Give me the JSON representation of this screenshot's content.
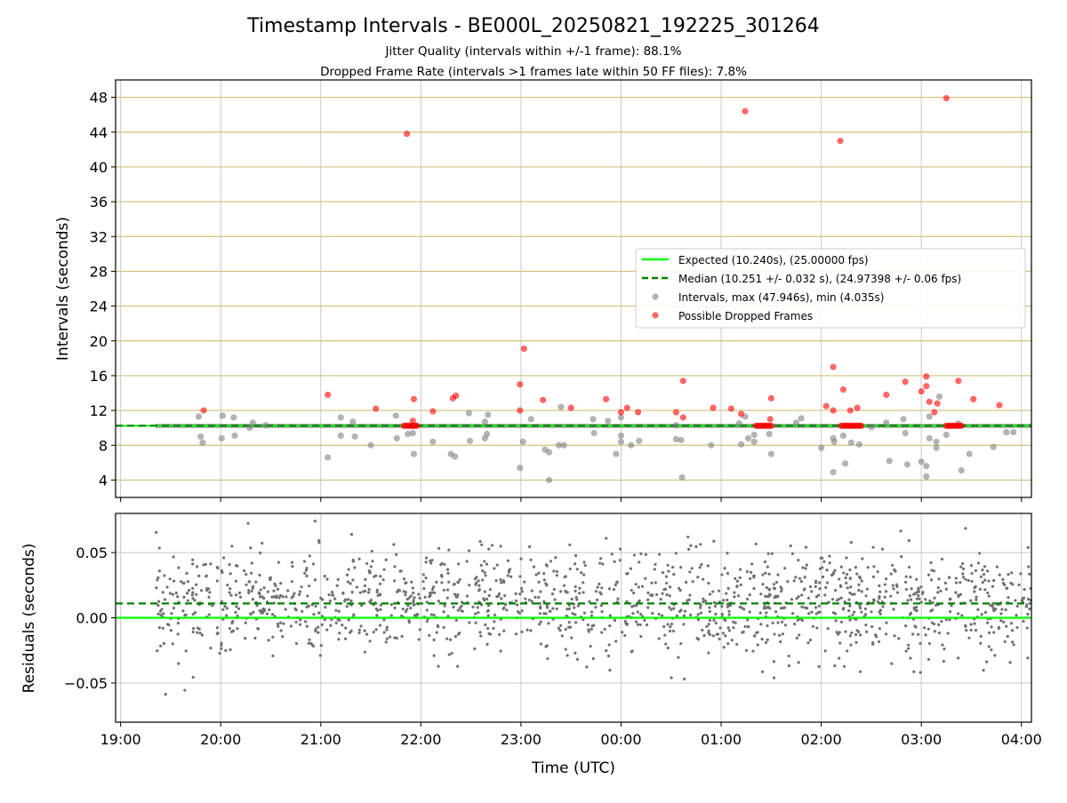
{
  "chart_data": [
    {
      "type": "scatter",
      "title": "Timestamp Intervals - BE000L_20250821_192225_301264",
      "subtitle_lines": [
        "Jitter Quality (intervals within +/-1 frame): 88.1%",
        "Dropped Frame Rate (intervals >1 frames late within 50 FF files): 7.8%"
      ],
      "xlabel": "",
      "ylabel": "Intervals (seconds)",
      "xlim_hours": [
        18.95,
        28.1
      ],
      "ylim": [
        2,
        50
      ],
      "yticks": [
        4,
        8,
        12,
        16,
        20,
        24,
        28,
        32,
        36,
        40,
        44,
        48
      ],
      "grid": true,
      "legend_position": "center-right",
      "legend": [
        "Expected (10.240s), (25.00000 fps)",
        "Median (10.251 +/- 0.032 s), (24.97398 +/- 0.06 fps)",
        "Intervals, max (47.946s), min (4.035s)",
        "Possible Dropped Frames"
      ],
      "expected_value": 10.24,
      "median_value": 10.251,
      "dense_band": {
        "x_start": 19.35,
        "x_end": 28.1,
        "y_min": 10.0,
        "y_max": 10.45
      },
      "intervals_outliers": [
        [
          19.78,
          11.3
        ],
        [
          19.82,
          8.3
        ],
        [
          19.8,
          9.0
        ],
        [
          20.13,
          11.2
        ],
        [
          20.02,
          11.4
        ],
        [
          20.01,
          8.8
        ],
        [
          20.14,
          9.1
        ],
        [
          20.32,
          10.6
        ],
        [
          20.29,
          10.0
        ],
        [
          20.45,
          10.3
        ],
        [
          21.07,
          6.6
        ],
        [
          21.2,
          11.2
        ],
        [
          21.2,
          9.1
        ],
        [
          21.32,
          10.7
        ],
        [
          21.34,
          9.0
        ],
        [
          21.5,
          8.0
        ],
        [
          21.75,
          11.4
        ],
        [
          21.76,
          8.8
        ],
        [
          21.87,
          9.3
        ],
        [
          21.92,
          9.4
        ],
        [
          21.93,
          7.0
        ],
        [
          22.12,
          8.4
        ],
        [
          22.3,
          7.0
        ],
        [
          22.34,
          6.7
        ],
        [
          22.48,
          11.7
        ],
        [
          22.49,
          8.5
        ],
        [
          22.67,
          11.5
        ],
        [
          22.64,
          10.7
        ],
        [
          22.66,
          9.3
        ],
        [
          22.64,
          8.8
        ],
        [
          22.99,
          5.4
        ],
        [
          23.02,
          8.4
        ],
        [
          23.1,
          11.0
        ],
        [
          23.24,
          7.5
        ],
        [
          23.28,
          4.0
        ],
        [
          23.28,
          7.2
        ],
        [
          23.4,
          12.4
        ],
        [
          23.38,
          8.0
        ],
        [
          23.43,
          8.0
        ],
        [
          23.72,
          11.0
        ],
        [
          23.73,
          9.4
        ],
        [
          23.87,
          10.8
        ],
        [
          23.95,
          7.0
        ],
        [
          24.0,
          11.2
        ],
        [
          24.0,
          9.1
        ],
        [
          24.0,
          8.4
        ],
        [
          24.1,
          8.0
        ],
        [
          24.18,
          8.5
        ],
        [
          24.55,
          10.3
        ],
        [
          24.55,
          8.7
        ],
        [
          24.6,
          8.6
        ],
        [
          24.61,
          4.3
        ],
        [
          24.9,
          8.0
        ],
        [
          25.2,
          8.1
        ],
        [
          25.18,
          10.5
        ],
        [
          25.24,
          11.3
        ],
        [
          25.27,
          8.8
        ],
        [
          25.33,
          8.4
        ],
        [
          25.33,
          9.2
        ],
        [
          25.48,
          9.3
        ],
        [
          25.5,
          7.0
        ],
        [
          25.8,
          11.1
        ],
        [
          25.75,
          10.6
        ],
        [
          26.0,
          7.7
        ],
        [
          26.12,
          8.8
        ],
        [
          26.13,
          8.4
        ],
        [
          26.12,
          4.9
        ],
        [
          26.22,
          9.1
        ],
        [
          26.24,
          5.9
        ],
        [
          26.3,
          8.3
        ],
        [
          26.38,
          8.1
        ],
        [
          26.5,
          10.1
        ],
        [
          26.65,
          10.6
        ],
        [
          26.68,
          6.2
        ],
        [
          26.82,
          11.0
        ],
        [
          26.84,
          9.4
        ],
        [
          26.86,
          5.8
        ],
        [
          27.0,
          6.1
        ],
        [
          27.05,
          5.6
        ],
        [
          27.05,
          4.4
        ],
        [
          27.08,
          11.3
        ],
        [
          27.08,
          8.8
        ],
        [
          27.15,
          8.4
        ],
        [
          27.15,
          7.7
        ],
        [
          27.18,
          13.6
        ],
        [
          27.25,
          9.2
        ],
        [
          27.37,
          10.5
        ],
        [
          27.4,
          5.1
        ],
        [
          27.48,
          7.0
        ],
        [
          27.72,
          7.8
        ],
        [
          27.85,
          9.5
        ],
        [
          27.92,
          9.5
        ]
      ],
      "dropped_points": [
        [
          19.83,
          12.0
        ],
        [
          21.07,
          13.8
        ],
        [
          21.55,
          12.2
        ],
        [
          21.86,
          43.8
        ],
        [
          21.93,
          13.3
        ],
        [
          21.92,
          10.8
        ],
        [
          22.12,
          11.9
        ],
        [
          22.32,
          13.4
        ],
        [
          22.35,
          13.7
        ],
        [
          22.99,
          15.0
        ],
        [
          22.99,
          12.0
        ],
        [
          23.03,
          19.1
        ],
        [
          23.22,
          13.2
        ],
        [
          23.5,
          12.3
        ],
        [
          23.85,
          13.3
        ],
        [
          24.0,
          11.8
        ],
        [
          24.06,
          12.3
        ],
        [
          24.17,
          11.8
        ],
        [
          24.55,
          11.8
        ],
        [
          24.62,
          15.4
        ],
        [
          24.62,
          11.2
        ],
        [
          24.92,
          12.3
        ],
        [
          25.1,
          12.2
        ],
        [
          25.2,
          11.6
        ],
        [
          25.24,
          46.4
        ],
        [
          25.5,
          13.4
        ],
        [
          25.49,
          11.0
        ],
        [
          26.05,
          12.5
        ],
        [
          26.12,
          17.0
        ],
        [
          26.12,
          12.0
        ],
        [
          26.19,
          43.0
        ],
        [
          26.22,
          14.4
        ],
        [
          26.29,
          12.0
        ],
        [
          26.36,
          12.3
        ],
        [
          26.65,
          13.8
        ],
        [
          26.84,
          15.3
        ],
        [
          27.0,
          14.2
        ],
        [
          27.05,
          14.8
        ],
        [
          27.05,
          15.9
        ],
        [
          27.08,
          13.0
        ],
        [
          27.13,
          11.8
        ],
        [
          27.16,
          12.8
        ],
        [
          27.25,
          47.9
        ],
        [
          27.37,
          15.4
        ],
        [
          27.52,
          13.3
        ],
        [
          27.78,
          12.6
        ]
      ],
      "dropped_clusters": [
        {
          "x_start": 21.83,
          "x_end": 21.96,
          "y": 10.24
        },
        {
          "x_start": 25.35,
          "x_end": 25.5,
          "y": 10.24
        },
        {
          "x_start": 26.2,
          "x_end": 26.4,
          "y": 10.24
        },
        {
          "x_start": 27.25,
          "x_end": 27.4,
          "y": 10.24
        }
      ]
    },
    {
      "type": "scatter",
      "title": "",
      "xlabel": "Time (UTC)",
      "ylabel": "Residuals (seconds)",
      "xlim_hours": [
        18.95,
        28.1
      ],
      "ylim": [
        -0.08,
        0.08
      ],
      "yticks": [
        -0.05,
        0.0,
        0.05
      ],
      "ytick_labels": [
        "−0.05",
        "0.00",
        "0.05"
      ],
      "xticks_hours": [
        19,
        20,
        21,
        22,
        23,
        24,
        25,
        26,
        27,
        28
      ],
      "xtick_labels": [
        "19:00",
        "20:00",
        "21:00",
        "22:00",
        "23:00",
        "00:00",
        "01:00",
        "02:00",
        "03:00",
        "04:00"
      ],
      "grid": true,
      "expected_residual": 0.0,
      "median_residual": 0.011,
      "residual_cloud": {
        "x_start": 19.35,
        "x_end": 28.1,
        "center": 0.011,
        "spread": 0.02,
        "count": 1500
      }
    }
  ]
}
